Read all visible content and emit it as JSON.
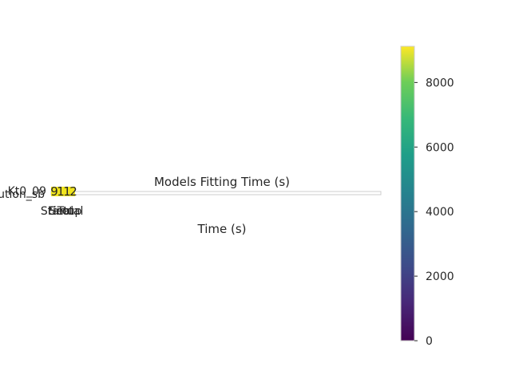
{
  "chart_data": {
    "type": "heatmap",
    "title": "Models Fitting Time (s)",
    "xlabel": "Time (s)",
    "ylabel": "",
    "x_tick_labels": [
      "Start",
      "Final",
      "Setup",
      "Total"
    ],
    "y_tick_labels": [
      "Resolution_sb",
      "Kt0_09"
    ],
    "cell_values": [
      "9",
      "1",
      "1",
      "2"
    ],
    "cell_color": "#f1e51d",
    "colorbar": {
      "cmap": "viridis",
      "min": 0,
      "max": 9122,
      "ticks": [
        0,
        2000,
        4000,
        6000,
        8000
      ],
      "tick_labels": [
        "0",
        "2000",
        "4000",
        "6000",
        "8000"
      ]
    },
    "grid": false
  }
}
